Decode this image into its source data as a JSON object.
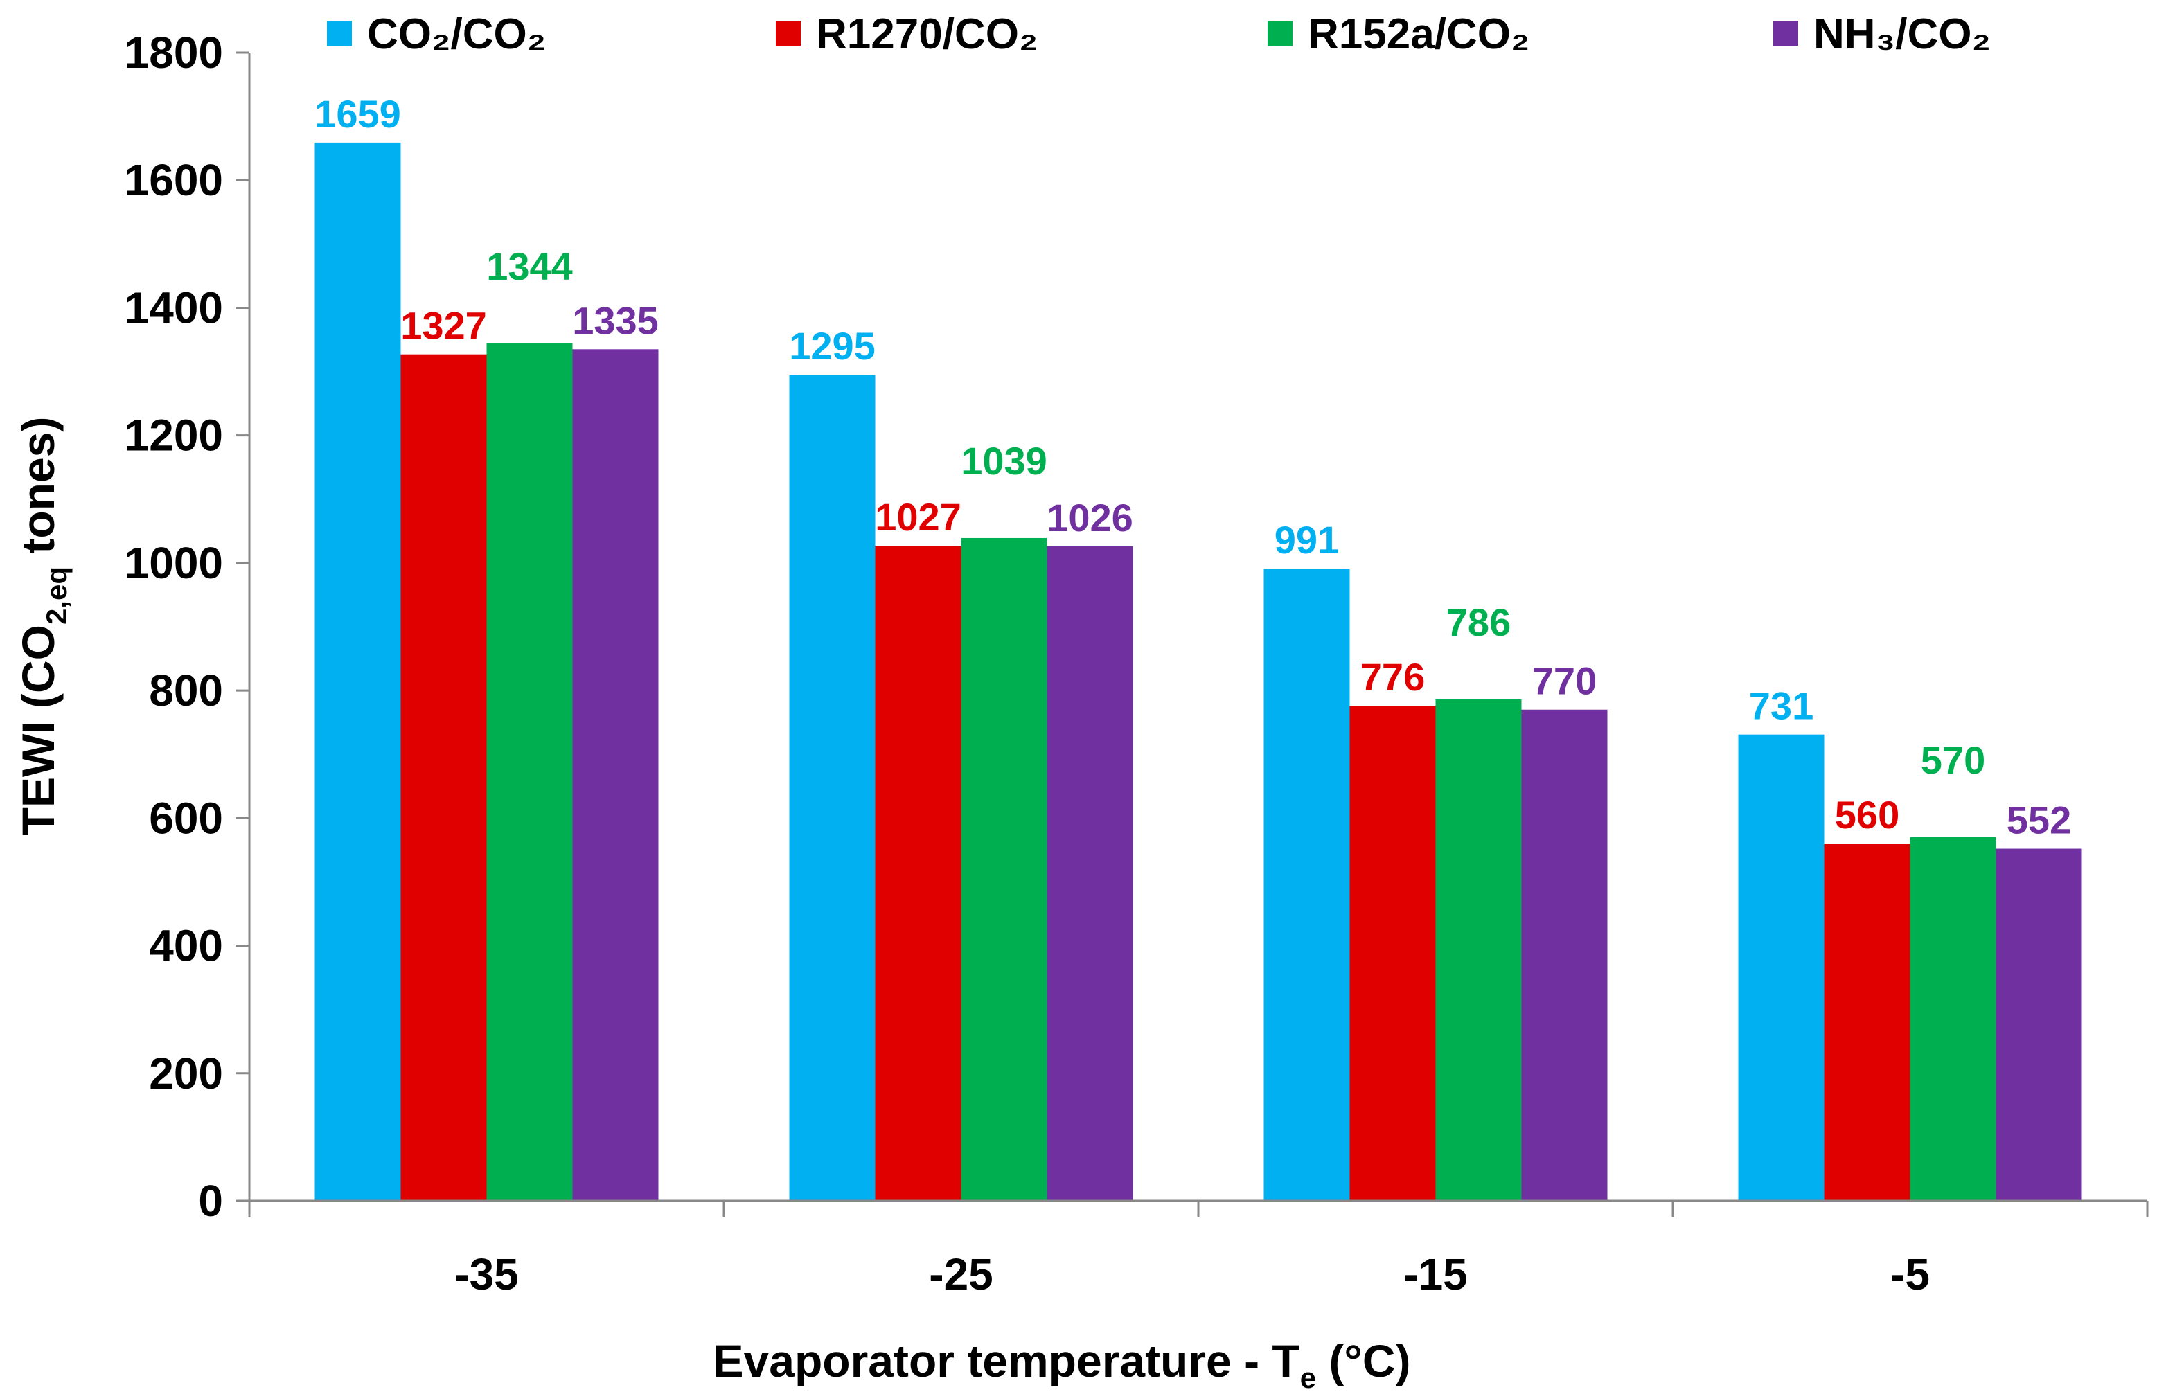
{
  "chart_data": {
    "type": "bar",
    "title": "",
    "xlabel": "Evaporator temperature - T",
    "xlabel_sub": "e",
    "xlabel_suffix": " (°C)",
    "ylabel": "TEWI (CO",
    "ylabel_sub": "2,eq",
    "ylabel_suffix": " tones)",
    "categories": [
      "-35",
      "-25",
      "-15",
      "-5"
    ],
    "ylim": [
      0,
      1800
    ],
    "yticks": [
      0,
      200,
      400,
      600,
      800,
      1000,
      1200,
      1400,
      1600,
      1800
    ],
    "grid": false,
    "legend_position": "top",
    "series": [
      {
        "name": "CO₂/CO₂",
        "color": "#00B0F0",
        "values": [
          1659,
          1295,
          991,
          731
        ]
      },
      {
        "name": "R1270/CO₂",
        "color": "#E00000",
        "values": [
          1327,
          1027,
          776,
          560
        ]
      },
      {
        "name": "R152a/CO₂",
        "color": "#00B050",
        "values": [
          1344,
          1039,
          786,
          570
        ]
      },
      {
        "name": "NH₃/CO₂",
        "color": "#7030A0",
        "values": [
          1335,
          1026,
          770,
          552
        ]
      }
    ]
  }
}
